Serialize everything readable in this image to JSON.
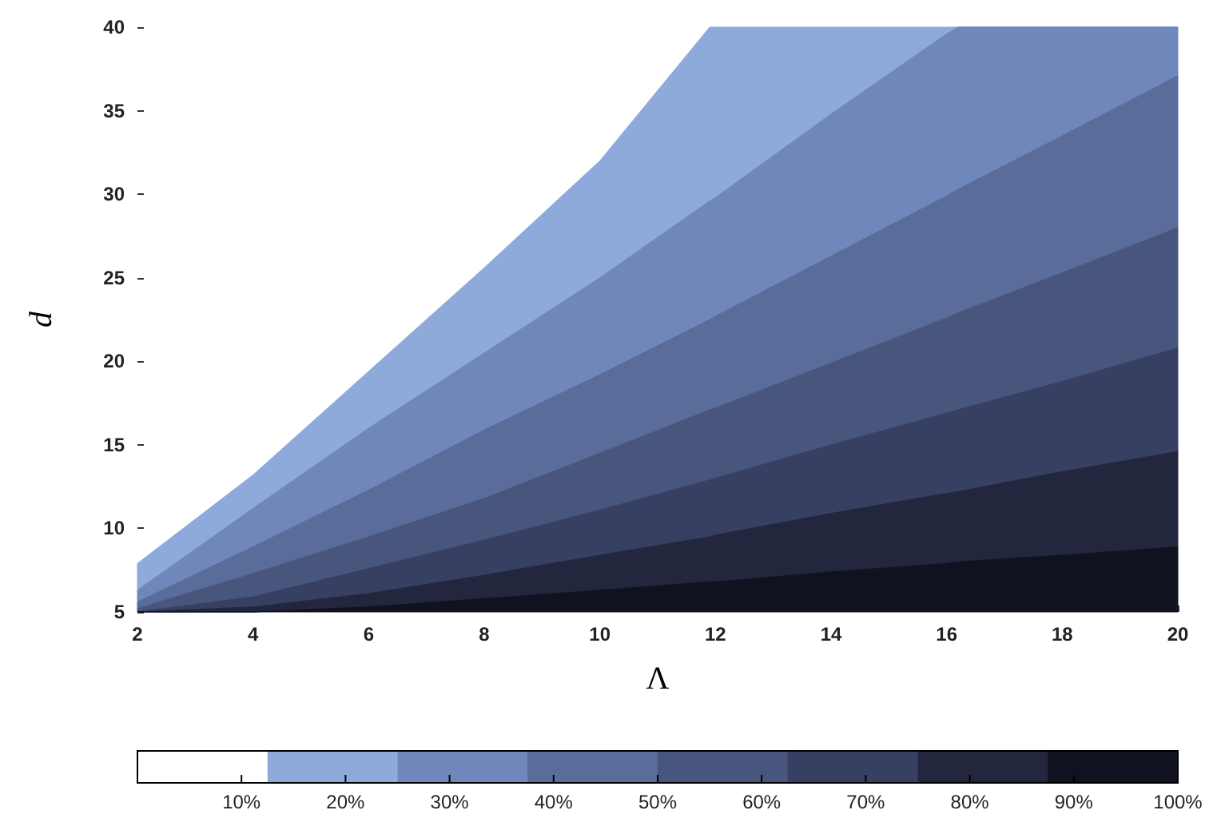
{
  "chart_data": {
    "type": "area",
    "xlabel": "Λ",
    "ylabel": "d",
    "xlim": [
      2,
      20
    ],
    "xticks": [
      2,
      4,
      6,
      8,
      10,
      12,
      14,
      16,
      18,
      20
    ],
    "ylim": [
      5,
      40
    ],
    "yticks": [
      5,
      10,
      15,
      20,
      25,
      30,
      35,
      40
    ],
    "x": [
      2,
      4,
      6,
      8,
      10,
      11.9,
      12,
      14,
      16,
      16.2,
      18,
      20
    ],
    "series": [
      {
        "color": "#8eaadb",
        "values": [
          7.9,
          13.2,
          19.4,
          25.6,
          32,
          40,
          40,
          40,
          40,
          40,
          40,
          40
        ]
      },
      {
        "color": "#6f87ba",
        "values": [
          6.3,
          11.2,
          16,
          20.5,
          25,
          29.6,
          29.8,
          34.8,
          39.6,
          40,
          40,
          40
        ]
      },
      {
        "color": "#5a6d9a",
        "values": [
          5.6,
          8.9,
          12.3,
          15.9,
          19.2,
          22.5,
          22.7,
          26.3,
          29.9,
          30.3,
          33.5,
          37.1
        ]
      },
      {
        "color": "#48557d",
        "values": [
          5.2,
          7.3,
          9.5,
          11.8,
          14.5,
          17.1,
          17.2,
          19.9,
          22.6,
          22.9,
          25.3,
          28
        ]
      },
      {
        "color": "#373f63",
        "values": [
          5,
          5.9,
          7.6,
          9.3,
          11.1,
          12.9,
          13,
          15,
          16.9,
          17.1,
          18.8,
          20.8
        ]
      },
      {
        "color": "#22273e",
        "values": [
          5,
          5.3,
          6.1,
          7.2,
          8.4,
          9.5,
          9.6,
          10.9,
          12.1,
          12.2,
          13.4,
          14.6
        ]
      },
      {
        "color": "#111220",
        "values": [
          5,
          5,
          5.3,
          5.8,
          6.3,
          6.8,
          6.8,
          7.4,
          7.9,
          8,
          8.4,
          8.9
        ]
      }
    ],
    "clim": [
      0,
      100
    ],
    "cticks": [
      {
        "value": 10,
        "label": "10%"
      },
      {
        "value": 20,
        "label": "20%"
      },
      {
        "value": 30,
        "label": "30%"
      },
      {
        "value": 40,
        "label": "40%"
      },
      {
        "value": 50,
        "label": "50%"
      },
      {
        "value": 60,
        "label": "60%"
      },
      {
        "value": 70,
        "label": "70%"
      },
      {
        "value": 80,
        "label": "80%"
      },
      {
        "value": 90,
        "label": "90%"
      },
      {
        "value": 100,
        "label": "100%"
      }
    ]
  }
}
